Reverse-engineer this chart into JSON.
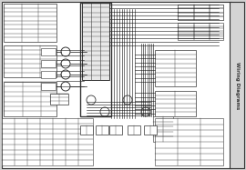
{
  "bg_color": "#d0d0d0",
  "page_bg": "#ffffff",
  "border_color": "#333333",
  "line_color": "#222222",
  "title_text": "Wiring Diagrams",
  "title_color": "#333333",
  "sidebar_bg": "#c8c8c8",
  "box_color": "#333333",
  "light_gray": "#aaaaaa",
  "dark_gray": "#444444",
  "white": "#ffffff",
  "mid_gray": "#888888",
  "wire_color": "#111111",
  "figw": 2.7,
  "figh": 1.87,
  "dpi": 100
}
